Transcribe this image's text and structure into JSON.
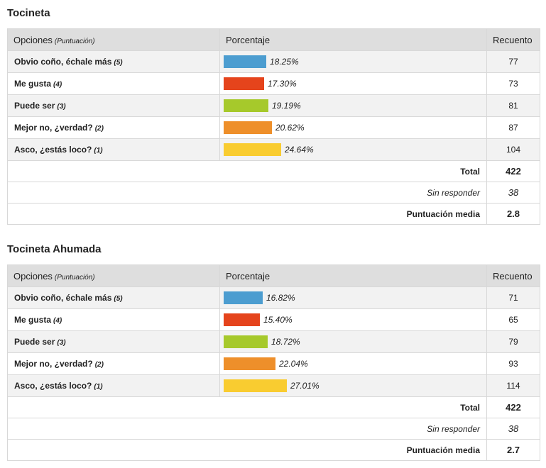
{
  "polls": [
    {
      "title": "Tocineta",
      "headers": {
        "options": "Opciones",
        "score_note": "(Puntuación)",
        "percent": "Porcentaje",
        "count": "Recuento"
      },
      "rows": [
        {
          "label": "Obvio coño, échale más",
          "score": "(5)",
          "percent_text": "18.25%",
          "percent": 18.25,
          "count": "77",
          "color": "#4c9dd0"
        },
        {
          "label": "Me gusta",
          "score": "(4)",
          "percent_text": "17.30%",
          "percent": 17.3,
          "count": "73",
          "color": "#e5441c"
        },
        {
          "label": "Puede ser",
          "score": "(3)",
          "percent_text": "19.19%",
          "percent": 19.19,
          "count": "81",
          "color": "#a6c92b"
        },
        {
          "label": "Mejor no, ¿verdad?",
          "score": "(2)",
          "percent_text": "20.62%",
          "percent": 20.62,
          "count": "87",
          "color": "#ee8f2a"
        },
        {
          "label": "Asco, ¿estás loco?",
          "score": "(1)",
          "percent_text": "24.64%",
          "percent": 24.64,
          "count": "104",
          "color": "#f9cc30"
        }
      ],
      "summary": [
        {
          "label": "Total",
          "value": "422",
          "style": "bold"
        },
        {
          "label": "Sin responder",
          "value": "38",
          "style": "italic"
        },
        {
          "label": "Puntuación media",
          "value": "2.8",
          "style": "bold"
        }
      ]
    },
    {
      "title": "Tocineta Ahumada",
      "headers": {
        "options": "Opciones",
        "score_note": "(Puntuación)",
        "percent": "Porcentaje",
        "count": "Recuento"
      },
      "rows": [
        {
          "label": "Obvio coño, échale más",
          "score": "(5)",
          "percent_text": "16.82%",
          "percent": 16.82,
          "count": "71",
          "color": "#4c9dd0"
        },
        {
          "label": "Me gusta",
          "score": "(4)",
          "percent_text": "15.40%",
          "percent": 15.4,
          "count": "65",
          "color": "#e5441c"
        },
        {
          "label": "Puede ser",
          "score": "(3)",
          "percent_text": "18.72%",
          "percent": 18.72,
          "count": "79",
          "color": "#a6c92b"
        },
        {
          "label": "Mejor no, ¿verdad?",
          "score": "(2)",
          "percent_text": "22.04%",
          "percent": 22.04,
          "count": "93",
          "color": "#ee8f2a"
        },
        {
          "label": "Asco, ¿estás loco?",
          "score": "(1)",
          "percent_text": "27.01%",
          "percent": 27.01,
          "count": "114",
          "color": "#f9cc30"
        }
      ],
      "summary": [
        {
          "label": "Total",
          "value": "422",
          "style": "bold"
        },
        {
          "label": "Sin responder",
          "value": "38",
          "style": "italic"
        },
        {
          "label": "Puntuación media",
          "value": "2.7",
          "style": "bold"
        }
      ]
    }
  ]
}
